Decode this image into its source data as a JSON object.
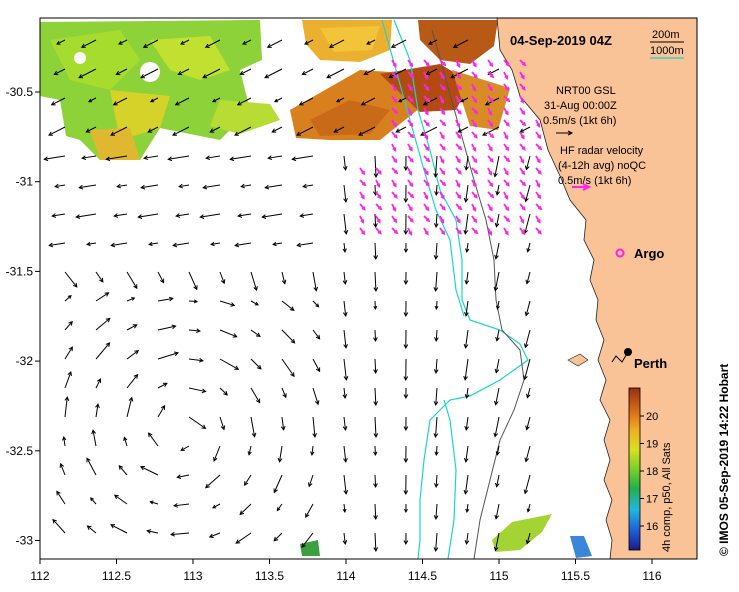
{
  "title": "04-Sep-2019 04Z",
  "depth_legend": {
    "items": [
      {
        "label": "200m",
        "color": "#000000"
      },
      {
        "label": "1000m",
        "color": "#19d6c8"
      }
    ]
  },
  "current_legend": {
    "line1": "NRT00 GSL",
    "line2": "31-Aug 00:00Z",
    "line3": "0.5m/s (1kt 6h)",
    "color": "#000000"
  },
  "radar_legend": {
    "line1": "HF radar velocity",
    "line2": "(4-12h avg) noQC",
    "line3": "0.5m/s (1kt 6h)",
    "color": "#ff22ee"
  },
  "argo_label": "Argo",
  "argo_color": "#ff22ee",
  "city_label": "Perth",
  "colorbar": {
    "ticks": [
      "16",
      "17",
      "18",
      "19",
      "20"
    ],
    "title": "4h comp, p50, All Sats"
  },
  "credit": "© IMOS 05-Sep-2019 14:22 Hobart",
  "x_axis": {
    "ticks": [
      "112",
      "112.5",
      "113",
      "113.5",
      "114",
      "114.5",
      "115",
      "115.5",
      "116"
    ]
  },
  "y_axis": {
    "ticks": [
      "-30.5",
      "-31",
      "-31.5",
      "-32",
      "-32.5",
      "-33"
    ]
  },
  "colors": {
    "land": "#f9c297",
    "isobath_1000": "#19d6c8",
    "isobath_200": "#555555"
  }
}
